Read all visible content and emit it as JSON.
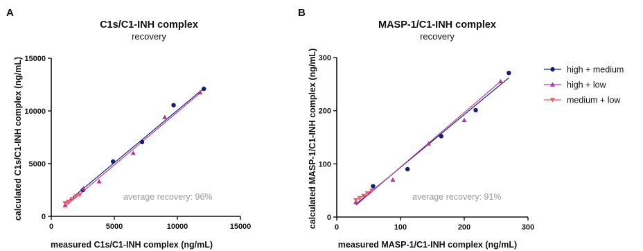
{
  "figure": {
    "colors": {
      "high_medium": "#141e7a",
      "high_low": "#b1379e",
      "medium_low": "#ee5a6e",
      "axis": "#111111",
      "note": "#9a9a9a"
    },
    "legend": {
      "placement": "right",
      "entries": [
        {
          "label": "high + medium",
          "series": "high_medium",
          "marker": "circle"
        },
        {
          "label": "high + low",
          "series": "high_low",
          "marker": "triangle-up"
        },
        {
          "label": "medium + low",
          "series": "medium_low",
          "marker": "triangle-down"
        }
      ]
    }
  },
  "chart_data": [
    {
      "panel_label": "A",
      "type": "scatter",
      "title": "C1s/C1-INH complex",
      "subtitle": "recovery",
      "xlabel": "measured C1s/C1-INH complex (ng/mL)",
      "ylabel": "calculated C1s/C1-INH complex (ng/mL)",
      "xlim": [
        0,
        15000
      ],
      "ylim": [
        0,
        15000
      ],
      "xticks": [
        0,
        5000,
        10000,
        15000
      ],
      "yticks": [
        0,
        5000,
        10000,
        15000
      ],
      "annotation": "average recovery: 96%",
      "grid": false,
      "series": [
        {
          "name": "high + medium",
          "color": "#141e7a",
          "marker": "circle",
          "x": [
            2500,
            4900,
            7200,
            9700,
            12100
          ],
          "y": [
            2500,
            5200,
            7050,
            10550,
            12100
          ],
          "fit": {
            "x": [
              1100,
              12100
            ],
            "y": [
              1200,
              12150
            ]
          }
        },
        {
          "name": "high + low",
          "color": "#b1379e",
          "marker": "triangle-up",
          "x": [
            1100,
            2550,
            3800,
            6500,
            9000,
            11800
          ],
          "y": [
            1050,
            2650,
            3300,
            6000,
            9400,
            11750
          ],
          "fit": {
            "x": [
              1100,
              11800
            ],
            "y": [
              950,
              11700
            ]
          }
        },
        {
          "name": "medium + low",
          "color": "#ee5a6e",
          "marker": "triangle-down",
          "x": [
            1100,
            1350,
            1650,
            1950,
            2250
          ],
          "y": [
            1250,
            1400,
            1650,
            1900,
            2050
          ],
          "fit": {
            "x": [
              1100,
              2300
            ],
            "y": [
              1150,
              2150
            ]
          }
        }
      ]
    },
    {
      "panel_label": "B",
      "type": "scatter",
      "title": "MASP-1/C1-INH complex",
      "subtitle": "recovery",
      "xlabel": "measured MASP-1/C1-INH complex (ng/mL)",
      "ylabel": "calculated MASP-1/C1-INH complex (ng/mL)",
      "xlim": [
        0,
        300
      ],
      "ylim": [
        0,
        300
      ],
      "xticks": [
        0,
        100,
        200,
        300
      ],
      "yticks": [
        0,
        100,
        200,
        300
      ],
      "annotation": "average recovery: 91%",
      "grid": false,
      "series": [
        {
          "name": "high + medium",
          "color": "#141e7a",
          "marker": "circle",
          "x": [
            57,
            111,
            164,
            218,
            270
          ],
          "y": [
            58,
            90,
            152,
            201,
            271
          ],
          "fit": {
            "x": [
              30,
              270
            ],
            "y": [
              24,
              262
            ]
          }
        },
        {
          "name": "high + low",
          "color": "#b1379e",
          "marker": "triangle-up",
          "x": [
            30,
            88,
            144,
            200,
            257
          ],
          "y": [
            28,
            70,
            138,
            182,
            255
          ],
          "fit": {
            "x": [
              30,
              257
            ],
            "y": [
              22,
              255
            ]
          }
        },
        {
          "name": "medium + low",
          "color": "#ee5a6e",
          "marker": "triangle-down",
          "x": [
            30,
            36,
            42,
            48,
            55
          ],
          "y": [
            32,
            36,
            40,
            45,
            50
          ],
          "fit": {
            "x": [
              30,
              56
            ],
            "y": [
              31,
              51
            ]
          }
        }
      ]
    }
  ]
}
